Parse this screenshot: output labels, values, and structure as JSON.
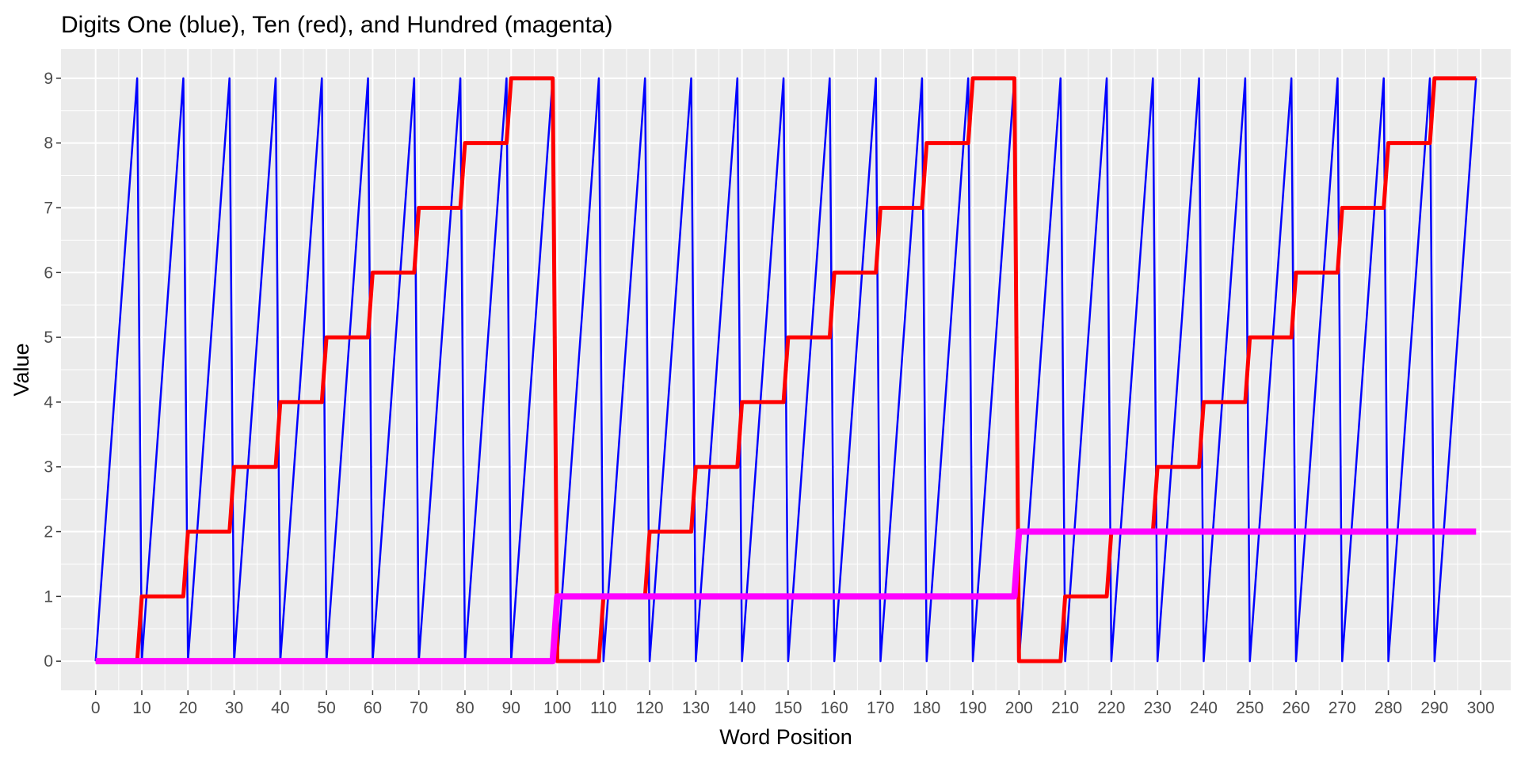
{
  "chart_data": {
    "type": "line",
    "title": "Digits One (blue), Ten (red), and Hundred (magenta)",
    "xlabel": "Word Position",
    "ylabel": "Value",
    "xlim": [
      -7.5,
      306.5
    ],
    "ylim": [
      -0.45,
      9.45
    ],
    "x_ticks": [
      0,
      10,
      20,
      30,
      40,
      50,
      60,
      70,
      80,
      90,
      100,
      110,
      120,
      130,
      140,
      150,
      160,
      170,
      180,
      190,
      200,
      210,
      220,
      230,
      240,
      250,
      260,
      270,
      280,
      290,
      300
    ],
    "y_ticks": [
      0,
      1,
      2,
      3,
      4,
      5,
      6,
      7,
      8,
      9
    ],
    "grid": true,
    "panel_background": "#ebebeb",
    "x_range": [
      0,
      299
    ],
    "series": [
      {
        "name": "One",
        "color": "#0000ff",
        "digit": "ones",
        "width": 2.5
      },
      {
        "name": "Ten",
        "color": "#ff0000",
        "digit": "tens",
        "width": 5
      },
      {
        "name": "Hundred",
        "color": "#ff00ff",
        "digit": "hundreds",
        "width": 8
      }
    ]
  }
}
